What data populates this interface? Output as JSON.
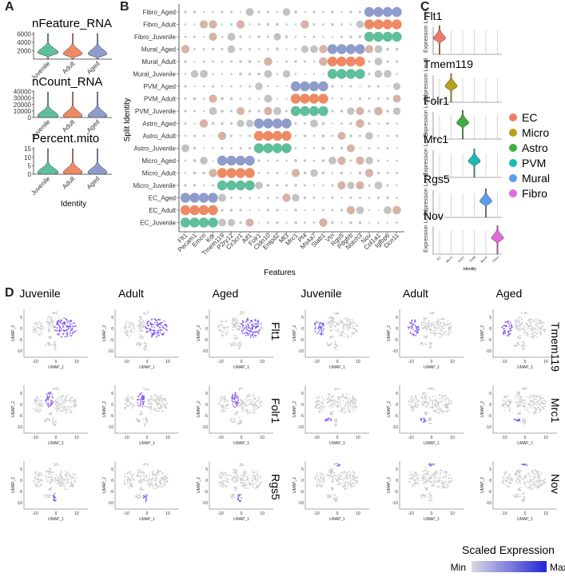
{
  "panels": {
    "A": "A",
    "B": "B",
    "C": "C",
    "D": "D"
  },
  "panelA": {
    "xlabel": "Identity",
    "groups": [
      "Juvenile",
      "Adult",
      "Aged"
    ],
    "colors": {
      "Juvenile": "#5fbf9a",
      "Adult": "#ee8a63",
      "Aged": "#8f9ccb"
    },
    "plots": [
      {
        "title": "nFeature_RNA",
        "ticks": [
          "2000",
          "4000",
          "6000"
        ],
        "ylim": [
          0,
          6500
        ],
        "tickvals": [
          2000,
          4000,
          6000
        ]
      },
      {
        "title": "nCount_RNA",
        "ticks": [
          "0",
          "10000",
          "20000",
          "30000",
          "40000"
        ],
        "ylim": [
          0,
          42000
        ],
        "tickvals": [
          0,
          10000,
          20000,
          30000,
          40000
        ]
      },
      {
        "title": "Percent.mito",
        "ticks": [
          "0",
          "5",
          "10",
          "15"
        ],
        "ylim": [
          0,
          16
        ],
        "tickvals": [
          0,
          5,
          10,
          15
        ]
      }
    ]
  },
  "chart_data": {
    "type": "dotplot",
    "xlabel": "Features",
    "ylabel": "Split Identity",
    "features": [
      "Flt1",
      "Pecam1",
      "Emcn",
      "Kdr",
      "Tmem119",
      "P2ry12",
      "Cx3cr1",
      "Aif1",
      "Folr1",
      "Cldn10",
      "Entpd2",
      "Mt3",
      "Mrc1",
      "Pf4",
      "Ms4a7",
      "Stab1",
      "Vtn",
      "Rgs5",
      "Pdgfrb",
      "Notch3",
      "Nov",
      "Col1a1",
      "Igfbp6",
      "Dcn11"
    ],
    "identities": [
      "Fibro_Aged",
      "Fibro_Adult",
      "Fibro_Juvenile",
      "Mural_Aged",
      "Mural_Adult",
      "Mural_Juvenile",
      "PVM_Aged",
      "PVM_Adult",
      "PVM_Juvenile",
      "Astro_Aged",
      "Astro_Adult",
      "Astro_Juvenile",
      "Micro_Aged",
      "Micro_Adult",
      "Micro_Juvenile",
      "EC_Aged",
      "EC_Adult",
      "EC_Juvenile"
    ],
    "age_colors": {
      "Aged": "#8f9ccb",
      "Adult": "#ee8a63",
      "Juvenile": "#5fbf9a"
    },
    "high_blocks": [
      {
        "cell": "EC",
        "features": [
          0,
          1,
          2,
          3
        ]
      },
      {
        "cell": "Micro",
        "features": [
          4,
          5,
          6,
          7
        ]
      },
      {
        "cell": "Astro",
        "features": [
          8,
          9,
          10,
          11
        ]
      },
      {
        "cell": "PVM",
        "features": [
          12,
          13,
          14,
          15
        ]
      },
      {
        "cell": "Mural",
        "features": [
          16,
          17,
          18,
          19
        ]
      },
      {
        "cell": "Fibro",
        "features": [
          20,
          21,
          22,
          23
        ]
      }
    ]
  },
  "panelC": {
    "legend": [
      {
        "label": "EC",
        "color": "#ee7b6a"
      },
      {
        "label": "Micro",
        "color": "#b8a017"
      },
      {
        "label": "Astro",
        "color": "#3dae3d"
      },
      {
        "label": "PVM",
        "color": "#19bdb4"
      },
      {
        "label": "Mural",
        "color": "#5c9cf0"
      },
      {
        "label": "Fibro",
        "color": "#e26ad8"
      }
    ],
    "genes": [
      "Flt1",
      "Tmem119",
      "Folr1",
      "Mrc1",
      "Rgs5",
      "Nov"
    ],
    "ylabel": "Expression Level",
    "categories": [
      "EC",
      "Micro",
      "Astro",
      "PVM",
      "Mural",
      "Fibro"
    ],
    "xlabel": "Identity"
  },
  "panelD": {
    "cols": [
      "Juvenile",
      "Adult",
      "Aged",
      "Juvenile",
      "Adult",
      "Aged"
    ],
    "left_genes": [
      "Flt1",
      "Folr1",
      "Rgs5"
    ],
    "right_genes": [
      "Tmem119",
      "Mrc1",
      "Nov"
    ],
    "umap_x": "UMAP_1",
    "umap_y": "UMAP_2",
    "xticks": [
      "-10",
      "0",
      "10"
    ],
    "yticks": [
      "-10",
      "-5",
      "0",
      "5"
    ],
    "legend_title": "Scaled Expression",
    "legend_min": "Min",
    "legend_max": "Max"
  }
}
